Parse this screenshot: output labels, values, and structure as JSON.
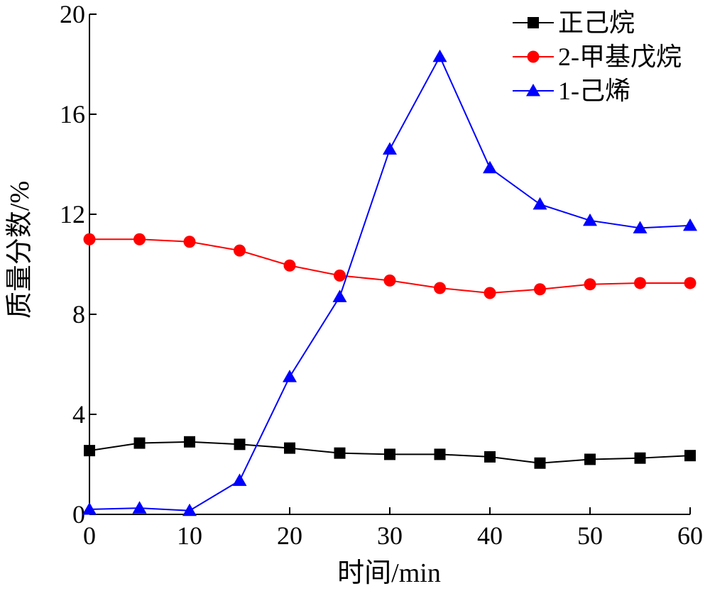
{
  "chart_data": {
    "type": "line",
    "title": "",
    "xlabel": "时间/min",
    "ylabel": "质量分数/%",
    "xlim": [
      0,
      60
    ],
    "ylim": [
      0,
      20
    ],
    "xticks": [
      0,
      10,
      20,
      30,
      40,
      50,
      60
    ],
    "yticks": [
      0,
      4,
      8,
      12,
      16,
      20
    ],
    "grid": false,
    "legend_position": "top-right",
    "x": [
      0,
      5,
      10,
      15,
      20,
      25,
      30,
      35,
      40,
      45,
      50,
      55,
      60
    ],
    "series": [
      {
        "name": "正己烷",
        "color": "#000000",
        "marker": "square",
        "values": [
          2.55,
          2.85,
          2.9,
          2.8,
          2.65,
          2.45,
          2.4,
          2.4,
          2.3,
          2.05,
          2.2,
          2.25,
          2.35
        ]
      },
      {
        "name": "2-甲基戊烷",
        "color": "#ff0000",
        "marker": "circle",
        "values": [
          11.0,
          11.0,
          10.9,
          10.55,
          9.95,
          9.55,
          9.35,
          9.05,
          8.85,
          9.0,
          9.2,
          9.25,
          9.25
        ]
      },
      {
        "name": "1-己烯",
        "color": "#0000ff",
        "marker": "triangle",
        "values": [
          0.2,
          0.25,
          0.15,
          1.35,
          5.5,
          8.7,
          14.6,
          18.3,
          13.85,
          12.4,
          11.75,
          11.45,
          11.55
        ]
      }
    ]
  }
}
